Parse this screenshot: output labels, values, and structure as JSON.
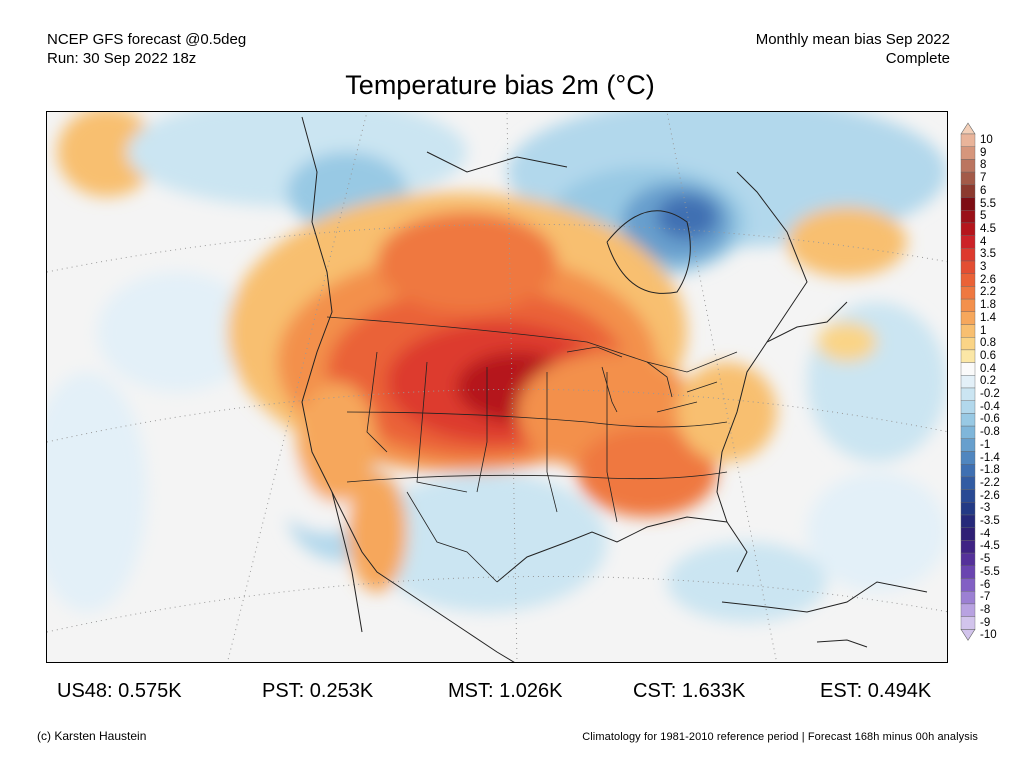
{
  "header": {
    "left_line1": "NCEP GFS forecast @0.5deg",
    "left_line2": "Run: 30 Sep 2022 18z",
    "right_line1": "Monthly mean bias Sep 2022",
    "right_line2": "Complete"
  },
  "title": "Temperature bias 2m (°C)",
  "legend": {
    "labels": [
      "10",
      "9",
      "8",
      "7",
      "6",
      "5.5",
      "5",
      "4.5",
      "4",
      "3.5",
      "3",
      "2.6",
      "2.2",
      "1.8",
      "1.4",
      "1",
      "0.8",
      "0.6",
      "0.4",
      "0.2",
      "-0.2",
      "-0.4",
      "-0.6",
      "-0.8",
      "-1",
      "-1.4",
      "-1.8",
      "-2.2",
      "-2.6",
      "-3",
      "-3.5",
      "-4",
      "-4.5",
      "-5",
      "-5.5",
      "-6",
      "-7",
      "-8",
      "-9",
      "-10"
    ],
    "colors": [
      "#f3cfb8",
      "#e9b49a",
      "#d6967c",
      "#bb7560",
      "#a35a48",
      "#8c3a2f",
      "#7e0d14",
      "#9a1018",
      "#b5151c",
      "#cc2228",
      "#dd3a2e",
      "#e34e33",
      "#ea6237",
      "#ef7840",
      "#f3904c",
      "#f6a75c",
      "#f8bf70",
      "#fad486",
      "#fbe7a6",
      "#fafafa",
      "#e3f0f8",
      "#cbe5f2",
      "#b2d8ec",
      "#98c9e4",
      "#7fb6da",
      "#679fcd",
      "#5086bf",
      "#3f70b2",
      "#325ca3",
      "#294a94",
      "#233a85",
      "#26297a",
      "#2f1f75",
      "#3f2384",
      "#55319a",
      "#6a45b0",
      "#8260c4",
      "#9c80d3",
      "#b8a2e1",
      "#d2c4ec"
    ]
  },
  "stats": {
    "us48": "US48: 0.575K",
    "pst": "PST: 0.253K",
    "mst": "MST: 1.026K",
    "cst": "CST: 1.633K",
    "est": "EST: 0.494K"
  },
  "footer": {
    "left": "(c) Karsten Haustein",
    "right": "Climatology for 1981-2010 reference period | Forecast 168h minus 00h analysis"
  }
}
